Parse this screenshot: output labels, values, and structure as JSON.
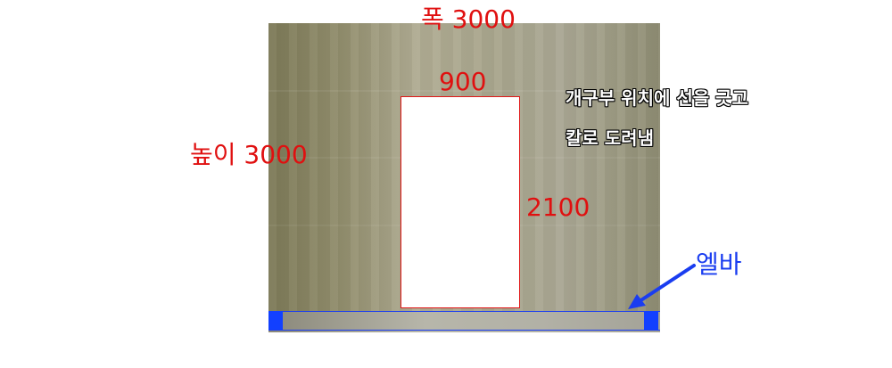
{
  "labels": {
    "width": "폭 3000",
    "height": "높이 3000",
    "opening_width": "900",
    "opening_height": "2100"
  },
  "note": {
    "line1": "개구부 위치에 선을 긋고",
    "line2": "칼로 도려냄"
  },
  "ell_bar": {
    "label": "엘바"
  },
  "colors": {
    "dimension": "#e01010",
    "ell_bar": "#1a3df0",
    "note_text": "#ffffff"
  }
}
